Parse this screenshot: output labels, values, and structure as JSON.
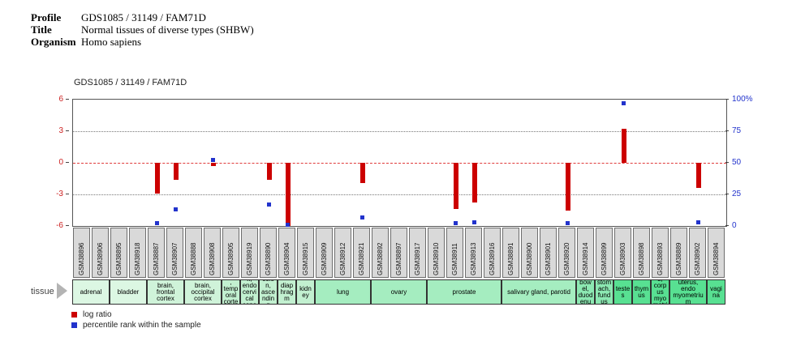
{
  "header": {
    "rows": [
      {
        "label": "Profile",
        "value": "GDS1085 / 31149 / FAM71D"
      },
      {
        "label": "Title",
        "value": "Normal tissues of diverse types (SHBW)"
      },
      {
        "label": "Organism",
        "value": "Homo sapiens"
      }
    ]
  },
  "tissue_row_label": "tissue",
  "legend": [
    {
      "swatch_color": "#cc0000",
      "label": "log ratio"
    },
    {
      "swatch_color": "#2233cc",
      "label": "percentile rank within the sample"
    }
  ],
  "chart_data": {
    "type": "bar",
    "title": "GDS1085 / 31149 / FAM71D",
    "ylim": [
      -6,
      6
    ],
    "grid": "dotted horizontal at +3 and -3, dashed red zero line",
    "legend_position": "bottom-left",
    "left_axis_label": "log ratio",
    "right_axis_label": "percentile rank within the sample",
    "left_ticks": [
      {
        "label": "6",
        "value": 6
      },
      {
        "label": "3",
        "value": 3
      },
      {
        "label": "0",
        "value": 0
      },
      {
        "label": "-3",
        "value": -3
      },
      {
        "label": "-6",
        "value": -6
      }
    ],
    "right_ticks": [
      {
        "label": "100%",
        "value": 100
      },
      {
        "label": "75",
        "value": 75
      },
      {
        "label": "50",
        "value": 50
      },
      {
        "label": "25",
        "value": 25
      },
      {
        "label": "0",
        "value": 0
      }
    ],
    "dotted_gridlines": [
      3,
      -3
    ],
    "colors": {
      "bar": "#cc0000",
      "dot": "#2233cc",
      "zero_line": "#e03a3a",
      "left_axis_text": "#cc2222",
      "right_axis_text": "#2233cc",
      "sample_cell_bg": "#d9d9d9"
    },
    "samples": [
      {
        "id": "GSM38896",
        "log_ratio": 0,
        "percentile": null
      },
      {
        "id": "GSM38906",
        "log_ratio": 0,
        "percentile": null
      },
      {
        "id": "GSM38895",
        "log_ratio": 0,
        "percentile": null
      },
      {
        "id": "GSM38918",
        "log_ratio": 0,
        "percentile": null
      },
      {
        "id": "GSM38887",
        "log_ratio": -2.9,
        "percentile": 2
      },
      {
        "id": "GSM38907",
        "log_ratio": -1.6,
        "percentile": 13
      },
      {
        "id": "GSM38888",
        "log_ratio": 0,
        "percentile": null
      },
      {
        "id": "GSM38908",
        "log_ratio": -0.3,
        "percentile": 52
      },
      {
        "id": "GSM38905",
        "log_ratio": 0,
        "percentile": null
      },
      {
        "id": "GSM38919",
        "log_ratio": 0,
        "percentile": null
      },
      {
        "id": "GSM38890",
        "log_ratio": -1.6,
        "percentile": 17
      },
      {
        "id": "GSM38904",
        "log_ratio": -6.0,
        "percentile": 1
      },
      {
        "id": "GSM38915",
        "log_ratio": 0,
        "percentile": null
      },
      {
        "id": "GSM38909",
        "log_ratio": 0,
        "percentile": null
      },
      {
        "id": "GSM38912",
        "log_ratio": 0,
        "percentile": null
      },
      {
        "id": "GSM38921",
        "log_ratio": -1.9,
        "percentile": 7
      },
      {
        "id": "GSM38892",
        "log_ratio": 0,
        "percentile": null
      },
      {
        "id": "GSM38897",
        "log_ratio": 0,
        "percentile": null
      },
      {
        "id": "GSM38917",
        "log_ratio": 0,
        "percentile": null
      },
      {
        "id": "GSM38910",
        "log_ratio": 0,
        "percentile": null
      },
      {
        "id": "GSM38911",
        "log_ratio": -4.4,
        "percentile": 2
      },
      {
        "id": "GSM38913",
        "log_ratio": -3.8,
        "percentile": 3
      },
      {
        "id": "GSM38916",
        "log_ratio": 0,
        "percentile": null
      },
      {
        "id": "GSM38891",
        "log_ratio": 0,
        "percentile": null
      },
      {
        "id": "GSM38900",
        "log_ratio": 0,
        "percentile": null
      },
      {
        "id": "GSM38901",
        "log_ratio": 0,
        "percentile": null
      },
      {
        "id": "GSM38920",
        "log_ratio": -4.5,
        "percentile": 2
      },
      {
        "id": "GSM38914",
        "log_ratio": 0,
        "percentile": null
      },
      {
        "id": "GSM38899",
        "log_ratio": 0,
        "percentile": null
      },
      {
        "id": "GSM38903",
        "log_ratio": 3.2,
        "percentile": 97
      },
      {
        "id": "GSM38898",
        "log_ratio": 0,
        "percentile": null
      },
      {
        "id": "GSM38893",
        "log_ratio": 0,
        "percentile": null
      },
      {
        "id": "GSM38889",
        "log_ratio": 0,
        "percentile": null
      },
      {
        "id": "GSM38902",
        "log_ratio": -2.4,
        "percentile": 3
      },
      {
        "id": "GSM38894",
        "log_ratio": 0,
        "percentile": null
      }
    ],
    "tissues": [
      {
        "name": "adrenal",
        "span": 2,
        "color": "#dcf7e3"
      },
      {
        "name": "bladder",
        "span": 2,
        "color": "#dcf7e3"
      },
      {
        "name": "brain, frontal cortex",
        "span": 2,
        "color": "#cff3d9"
      },
      {
        "name": "brain, occipital cortex",
        "span": 2,
        "color": "#cff3d9"
      },
      {
        "name": "brain, temporal cortex",
        "span": 1,
        "color": "#c2f0d0"
      },
      {
        "name": "cervix, endocervical canal",
        "span": 1,
        "color": "#c2f0d0"
      },
      {
        "name": "colon, ascending",
        "span": 1,
        "color": "#c2f0d0"
      },
      {
        "name": "diaphragm",
        "span": 1,
        "color": "#c2f0d0"
      },
      {
        "name": "kidney",
        "span": 1,
        "color": "#c2f0d0"
      },
      {
        "name": "lung",
        "span": 3,
        "color": "#a5edc0"
      },
      {
        "name": "ovary",
        "span": 3,
        "color": "#a5edc0"
      },
      {
        "name": "prostate",
        "span": 4,
        "color": "#a5edc0"
      },
      {
        "name": "salivary gland, parotid",
        "span": 4,
        "color": "#a5edc0"
      },
      {
        "name": "small bowel, duodenum",
        "span": 1,
        "color": "#8ce8b2"
      },
      {
        "name": "stomach, fundus",
        "span": 1,
        "color": "#8ce8b2"
      },
      {
        "name": "testes",
        "span": 1,
        "color": "#58e092"
      },
      {
        "name": "thymus",
        "span": 1,
        "color": "#58e092"
      },
      {
        "name": "uterus, corpus myometrium",
        "span": 1,
        "color": "#58e092"
      },
      {
        "name": "uterus, endo myometrium",
        "span": 2,
        "color": "#58e092"
      },
      {
        "name": "vagina",
        "span": 1,
        "color": "#58e092"
      }
    ]
  }
}
